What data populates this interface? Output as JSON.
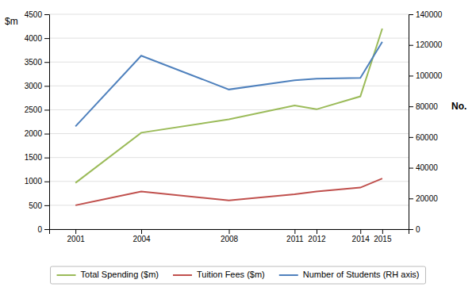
{
  "chart_data": {
    "type": "line",
    "x": [
      2001,
      2004,
      2008,
      2011,
      2012,
      2014,
      2015
    ],
    "xlim": [
      1999.8,
      2016.2
    ],
    "xticks": [
      2001,
      2004,
      2008,
      2011,
      2012,
      2014,
      2015
    ],
    "y_label": "$m",
    "y2_label": "No.",
    "ylim": [
      0,
      4500
    ],
    "yticks": [
      0,
      500,
      1000,
      1500,
      2000,
      2500,
      3000,
      3500,
      4000,
      4500
    ],
    "y2lim": [
      0,
      140000
    ],
    "y2ticks": [
      0,
      20000,
      40000,
      60000,
      80000,
      100000,
      120000,
      140000
    ],
    "grid": true,
    "legend": "bottom",
    "series": [
      {
        "name": "Total Spending ($m)",
        "color": "#9BBB59",
        "values": [
          970,
          2020,
          2300,
          2590,
          2510,
          2780,
          4200
        ]
      },
      {
        "name": "Tuition Fees ($m)",
        "color": "#C0504D",
        "values": [
          500,
          790,
          600,
          730,
          790,
          870,
          1060
        ]
      },
      {
        "name": "Number of Students (RH axis)",
        "color": "#4F81BD",
        "axis": "y2",
        "values": [
          67000,
          113000,
          91000,
          97000,
          98000,
          98500,
          122000
        ]
      }
    ]
  }
}
